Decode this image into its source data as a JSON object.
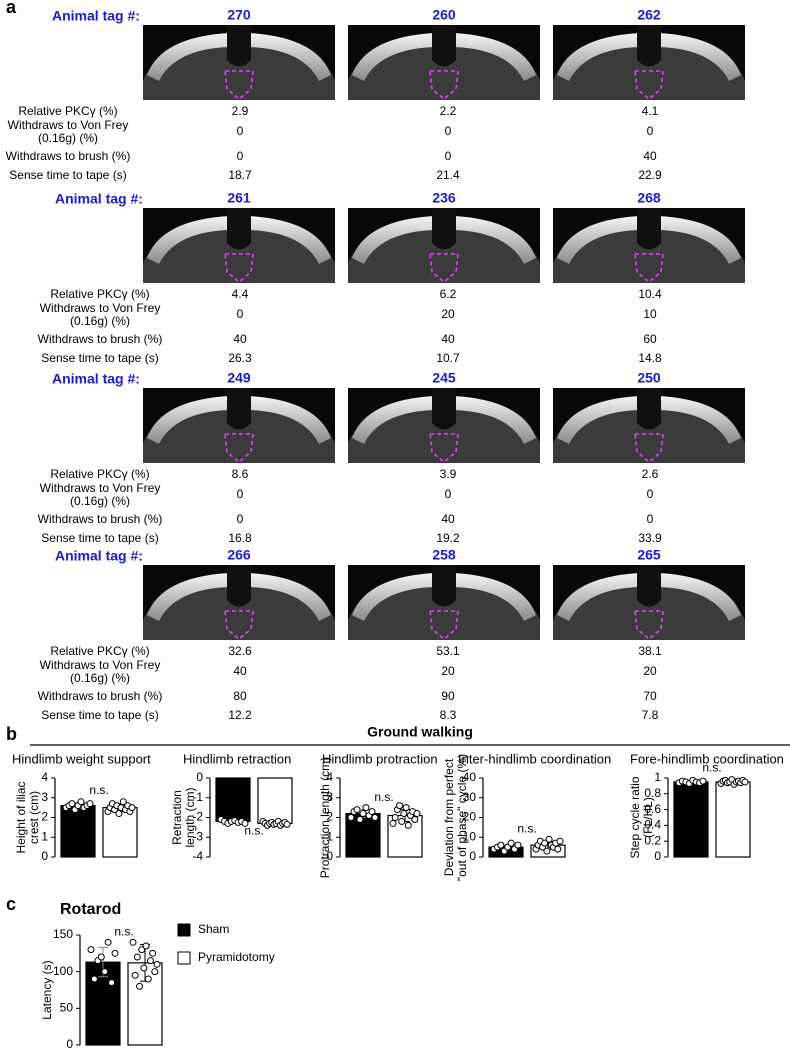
{
  "panel_a": {
    "label": "a",
    "tag_label": "Animal tag #:",
    "measures": [
      [
        "Relative PKCγ (%)"
      ],
      [
        "Withdraws to Von Frey",
        "(0.16g) (%)"
      ],
      [
        "Withdraws to brush (%)"
      ],
      [
        "Sense time to tape (s)"
      ]
    ],
    "rows": [
      {
        "value_colors": [
          "#000000",
          "#000000",
          "#000000",
          "#000000"
        ],
        "animals": [
          {
            "tag": "270",
            "values": [
              2.9,
              0,
              0,
              18.7
            ]
          },
          {
            "tag": "260",
            "values": [
              2.2,
              0,
              0,
              21.4
            ]
          },
          {
            "tag": "262",
            "values": [
              4.1,
              0,
              40,
              22.9
            ]
          }
        ]
      },
      {
        "value_colors": [
          "#000000",
          "#000000",
          "#000000",
          "#000000"
        ],
        "animals": [
          {
            "tag": "261",
            "values": [
              4.4,
              0,
              40,
              26.3
            ]
          },
          {
            "tag": "236",
            "values": [
              6.2,
              20,
              40,
              10.7
            ]
          },
          {
            "tag": "268",
            "values": [
              10.4,
              10,
              60,
              14.8
            ]
          }
        ]
      },
      {
        "value_colors": [
          "#000000",
          "#000000",
          "#000000",
          "#000000"
        ],
        "animals": [
          {
            "tag": "249",
            "values": [
              8.6,
              0,
              0,
              16.8
            ]
          },
          {
            "tag": "245",
            "values": [
              3.9,
              0,
              40,
              19.2
            ]
          },
          {
            "tag": "250",
            "values": [
              2.6,
              0,
              0,
              33.9
            ]
          }
        ]
      },
      {
        "value_colors": [
          "#000000",
          "#cc0000",
          "#cc0000",
          "#cc0000"
        ],
        "animals": [
          {
            "tag": "266",
            "values": [
              32.6,
              40,
              80,
              12.2
            ]
          },
          {
            "tag": "258",
            "values": [
              53.1,
              20,
              90,
              8.3
            ]
          },
          {
            "tag": "265",
            "values": [
              38.1,
              20,
              70,
              7.8
            ]
          }
        ]
      }
    ]
  },
  "panel_b": {
    "label": "b",
    "title": "Ground walking"
  },
  "panel_c": {
    "label": "c"
  },
  "chart_data": [
    {
      "type": "bar",
      "title": "Hindlimb weight support",
      "ylabel": [
        "Height of iliac",
        "crest (cm)"
      ],
      "ylim": [
        0,
        4
      ],
      "yticks": [
        0,
        1,
        2,
        3,
        4
      ],
      "annotation": "n.s.",
      "series": [
        {
          "name": "Sham",
          "color": "#000000",
          "values": [
            2.6
          ],
          "errors": [
            0.15
          ],
          "points": [
            2.5,
            2.6,
            2.7,
            2.4,
            2.6,
            2.8,
            2.5,
            2.6,
            2.7
          ]
        },
        {
          "name": "Pyramidotomy",
          "color": "#ffffff",
          "values": [
            2.5
          ],
          "errors": [
            0.2
          ],
          "points": [
            2.3,
            2.5,
            2.7,
            2.4,
            2.6,
            2.2,
            2.5,
            2.8,
            2.4,
            2.6,
            2.3,
            2.5
          ]
        }
      ]
    },
    {
      "type": "bar",
      "title": "Hindlimb retraction",
      "ylabel": [
        "Retraction",
        "length (cm)"
      ],
      "ylim": [
        -4,
        0
      ],
      "yticks": [
        0,
        -1,
        -2,
        -3,
        -4
      ],
      "annotation": "n.s.",
      "series": [
        {
          "name": "Sham",
          "color": "#000000",
          "values": [
            -2.2
          ],
          "errors": [
            0.08
          ],
          "points": [
            -2.1,
            -2.2,
            -2.3,
            -2.2,
            -2.15,
            -2.25,
            -2.2,
            -2.3
          ]
        },
        {
          "name": "Pyramidotomy",
          "color": "#ffffff",
          "values": [
            -2.3
          ],
          "errors": [
            0.1
          ],
          "points": [
            -2.2,
            -2.3,
            -2.4,
            -2.3,
            -2.25,
            -2.35,
            -2.3,
            -2.2,
            -2.4,
            -2.3,
            -2.25,
            -2.35
          ]
        }
      ]
    },
    {
      "type": "bar",
      "title": "Hindlimb protraction",
      "ylabel": [
        "Protraction length (cm)"
      ],
      "ylim": [
        0,
        4
      ],
      "yticks": [
        0,
        1,
        2,
        3,
        4
      ],
      "annotation": "n.s.",
      "series": [
        {
          "name": "Sham",
          "color": "#000000",
          "values": [
            2.2
          ],
          "errors": [
            0.2
          ],
          "points": [
            2.0,
            2.3,
            2.4,
            1.9,
            2.2,
            2.5,
            2.1,
            2.3,
            2.0
          ]
        },
        {
          "name": "Pyramidotomy",
          "color": "#ffffff",
          "values": [
            2.1
          ],
          "errors": [
            0.3
          ],
          "points": [
            1.7,
            2.0,
            2.4,
            2.6,
            1.8,
            2.2,
            2.5,
            1.6,
            2.1,
            2.3,
            1.9,
            2.2
          ]
        }
      ]
    },
    {
      "type": "bar",
      "title": "Inter-hindlimb coordination",
      "ylabel": [
        "Deviation from perfect",
        "\"out of phase\" cycle (%)"
      ],
      "ylim": [
        0,
        40
      ],
      "yticks": [
        0,
        10,
        20,
        30,
        40
      ],
      "annotation": "n.s.",
      "series": [
        {
          "name": "Sham",
          "color": "#000000",
          "values": [
            5
          ],
          "errors": [
            1
          ],
          "points": [
            4,
            5,
            6,
            3,
            5,
            7,
            4,
            6
          ]
        },
        {
          "name": "Pyramidotomy",
          "color": "#ffffff",
          "values": [
            6
          ],
          "errors": [
            2
          ],
          "points": [
            4,
            6,
            8,
            5,
            7,
            3,
            9,
            6,
            5,
            7,
            4,
            8
          ]
        }
      ]
    },
    {
      "type": "bar",
      "title": "Fore-hindlimb coordination",
      "ylabel": [
        "Step cycle ratio",
        "(FL/HL)"
      ],
      "ylim": [
        0,
        1
      ],
      "yticks": [
        0,
        0.2,
        0.4,
        0.6,
        0.8,
        1
      ],
      "annotation": "n.s.",
      "series": [
        {
          "name": "Sham",
          "color": "#000000",
          "values": [
            0.95
          ],
          "errors": [
            0.02
          ],
          "points": [
            0.94,
            0.96,
            0.95,
            0.93,
            0.97,
            0.95,
            0.94,
            0.96
          ]
        },
        {
          "name": "Pyramidotomy",
          "color": "#ffffff",
          "values": [
            0.95
          ],
          "errors": [
            0.02
          ],
          "points": [
            0.93,
            0.96,
            0.97,
            0.94,
            0.95,
            0.98,
            0.92,
            0.95,
            0.96,
            0.94,
            0.97,
            0.95
          ]
        }
      ]
    },
    {
      "type": "bar",
      "title": "Rotarod",
      "ylabel": [
        "Latency (s)"
      ],
      "ylim": [
        0,
        150
      ],
      "yticks": [
        0,
        50,
        100,
        150
      ],
      "annotation": "n.s.",
      "series": [
        {
          "name": "Sham",
          "color": "#000000",
          "values": [
            113
          ],
          "errors": [
            20
          ],
          "points": [
            130,
            90,
            115,
            120,
            100,
            140,
            85,
            125
          ]
        },
        {
          "name": "Pyramidotomy",
          "color": "#ffffff",
          "values": [
            112
          ],
          "errors": [
            25
          ],
          "points": [
            140,
            95,
            120,
            80,
            130,
            105,
            135,
            90,
            115,
            125,
            100,
            110
          ]
        }
      ]
    }
  ]
}
